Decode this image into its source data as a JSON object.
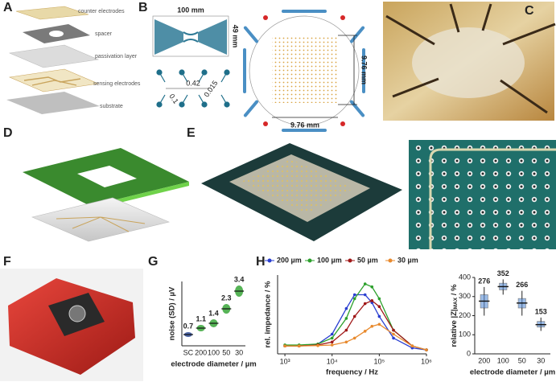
{
  "panel_labels": [
    "A",
    "B",
    "C",
    "D",
    "E",
    "F",
    "G",
    "H"
  ],
  "panel_a": {
    "layers": [
      "counter electrodes",
      "spacer",
      "passivation layer",
      "sensing electrodes",
      "substrate"
    ]
  },
  "panel_b": {
    "width": "100 mm",
    "height": "49 mm",
    "pitch": "0.42",
    "gap": "0.1",
    "trace": "0.015",
    "array_h": "9.76 mm",
    "array_w": "9.76 mm"
  },
  "chart_data": [
    {
      "type": "strip",
      "ylabel": "noise (SD) / µV",
      "xlabel": "electrode diameter / µm",
      "categories": [
        "SC",
        "200",
        "100",
        "50",
        "30"
      ],
      "values": [
        0.7,
        1.1,
        1.4,
        2.3,
        3.4
      ],
      "colors": [
        "#1f3f8f",
        "#2ca02c",
        "#2ca02c",
        "#2ca02c",
        "#2ca02c"
      ],
      "ylim": [
        0,
        4
      ]
    },
    {
      "type": "line",
      "ylabel": "rel. impedance / %",
      "xlabel": "frequency / Hz",
      "xscale": "log",
      "x": [
        1000,
        2000,
        5000,
        10000,
        20000,
        30000,
        50000,
        70000,
        100000,
        200000,
        500000,
        1000000
      ],
      "series": [
        {
          "name": "200 µm",
          "color": "#2a3fd1",
          "values": [
            40,
            40,
            50,
            100,
            230,
            300,
            300,
            260,
            190,
            80,
            30,
            20
          ]
        },
        {
          "name": "100 µm",
          "color": "#2ca02c",
          "values": [
            45,
            45,
            50,
            80,
            180,
            280,
            355,
            340,
            280,
            120,
            40,
            20
          ]
        },
        {
          "name": "50 µm",
          "color": "#a01818",
          "values": [
            40,
            40,
            45,
            60,
            120,
            190,
            255,
            270,
            240,
            120,
            40,
            20
          ]
        },
        {
          "name": "30 µm",
          "color": "#e88a2e",
          "values": [
            40,
            40,
            42,
            45,
            60,
            80,
            115,
            140,
            150,
            100,
            40,
            20
          ]
        }
      ],
      "xlim": [
        700,
        1000000
      ],
      "ylim": [
        0,
        400
      ],
      "xticks": [
        {
          "value": 1000,
          "label": "10³"
        },
        {
          "value": 10000,
          "label": "10⁴"
        },
        {
          "value": 100000,
          "label": "10⁵"
        },
        {
          "value": 1000000,
          "label": "10⁶"
        }
      ]
    },
    {
      "type": "box",
      "ylabel": [
        "relative |Z|",
        "MAX",
        " / %"
      ],
      "xlabel": "electrode diameter / µm",
      "categories": [
        "200",
        "100",
        "50",
        "30"
      ],
      "values": [
        276,
        352,
        266,
        153
      ],
      "q1": [
        240,
        335,
        240,
        140
      ],
      "q3": [
        310,
        370,
        290,
        170
      ],
      "min": [
        200,
        310,
        200,
        120
      ],
      "max": [
        350,
        390,
        330,
        190
      ],
      "color": "#5b8fd6",
      "ylim": [
        0,
        400
      ],
      "yticks": [
        0,
        100,
        200,
        300,
        400
      ]
    }
  ]
}
